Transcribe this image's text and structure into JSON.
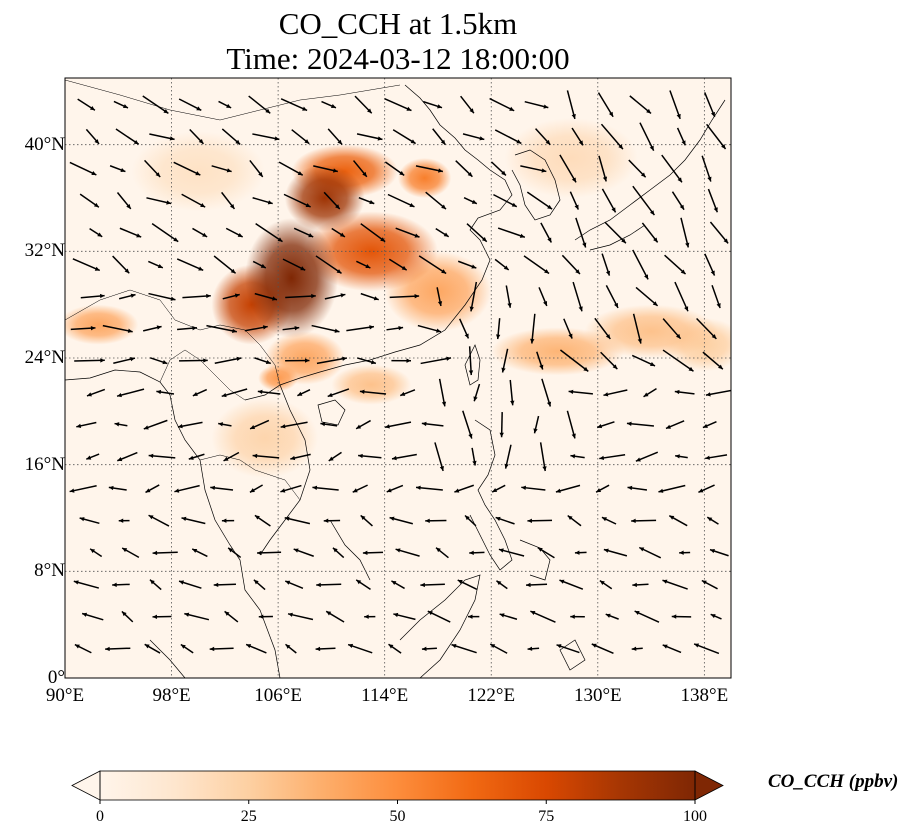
{
  "title": {
    "line1": "CO_CCH at 1.5km",
    "line2": "Time: 2024-03-12 18:00:00"
  },
  "map": {
    "extent": {
      "lon_min": 90,
      "lon_max": 140,
      "lat_min": 0,
      "lat_max": 45
    },
    "lat_ticks": [
      {
        "value": 0,
        "label": "0°"
      },
      {
        "value": 8,
        "label": "8°N"
      },
      {
        "value": 16,
        "label": "16°N"
      },
      {
        "value": 24,
        "label": "24°N"
      },
      {
        "value": 32,
        "label": "32°N"
      },
      {
        "value": 40,
        "label": "40°N"
      }
    ],
    "lon_ticks": [
      {
        "value": 90,
        "label": "90°E"
      },
      {
        "value": 98,
        "label": "98°E"
      },
      {
        "value": 106,
        "label": "106°E"
      },
      {
        "value": 114,
        "label": "114°E"
      },
      {
        "value": 122,
        "label": "122°E"
      },
      {
        "value": 130,
        "label": "130°E"
      },
      {
        "value": 138,
        "label": "138°E"
      }
    ],
    "gridlines": true,
    "concentration_field": [
      {
        "lon": 107,
        "lat": 30,
        "value": 100,
        "rlon": 3.5,
        "rlat": 4.5
      },
      {
        "lon": 109.5,
        "lat": 36,
        "value": 90,
        "rlon": 3,
        "rlat": 2.5
      },
      {
        "lon": 113,
        "lat": 32,
        "value": 70,
        "rlon": 5,
        "rlat": 3
      },
      {
        "lon": 111,
        "lat": 38,
        "value": 65,
        "rlon": 4,
        "rlat": 2
      },
      {
        "lon": 104,
        "lat": 28,
        "value": 80,
        "rlon": 3,
        "rlat": 3
      },
      {
        "lon": 118,
        "lat": 29,
        "value": 40,
        "rlon": 4,
        "rlat": 3
      },
      {
        "lon": 117,
        "lat": 37.5,
        "value": 55,
        "rlon": 2,
        "rlat": 1.5
      },
      {
        "lon": 108,
        "lat": 24,
        "value": 40,
        "rlon": 3,
        "rlat": 2
      },
      {
        "lon": 106,
        "lat": 22.5,
        "value": 45,
        "rlon": 1.5,
        "rlat": 1
      },
      {
        "lon": 92.5,
        "lat": 26.5,
        "value": 40,
        "rlon": 3,
        "rlat": 1.5
      },
      {
        "lon": 127,
        "lat": 24.5,
        "value": 35,
        "rlon": 5,
        "rlat": 1.8
      },
      {
        "lon": 134,
        "lat": 26,
        "value": 30,
        "rlon": 5,
        "rlat": 2
      },
      {
        "lon": 105,
        "lat": 18,
        "value": 22,
        "rlon": 4,
        "rlat": 3
      },
      {
        "lon": 138,
        "lat": 25,
        "value": 25,
        "rlon": 3,
        "rlat": 2
      },
      {
        "lon": 128,
        "lat": 39,
        "value": 18,
        "rlon": 5,
        "rlat": 3
      },
      {
        "lon": 100,
        "lat": 38,
        "value": 15,
        "rlon": 5,
        "rlat": 3
      },
      {
        "lon": 113,
        "lat": 22,
        "value": 30,
        "rlon": 3,
        "rlat": 1.5
      }
    ]
  },
  "colorbar": {
    "label": "CO_CCH (ppbv)",
    "min": 0,
    "max": 100,
    "extend": "both",
    "ticks": [
      "0",
      "25",
      "50",
      "75",
      "100"
    ],
    "colors": [
      "#fff5eb",
      "#fee6ce",
      "#fdd0a2",
      "#fdae6b",
      "#fd8d3c",
      "#f16913",
      "#d94801",
      "#a63603",
      "#7f2704"
    ]
  },
  "colors": {
    "land_line": "#000000",
    "grid": "#555555",
    "arrow": "#000000"
  }
}
